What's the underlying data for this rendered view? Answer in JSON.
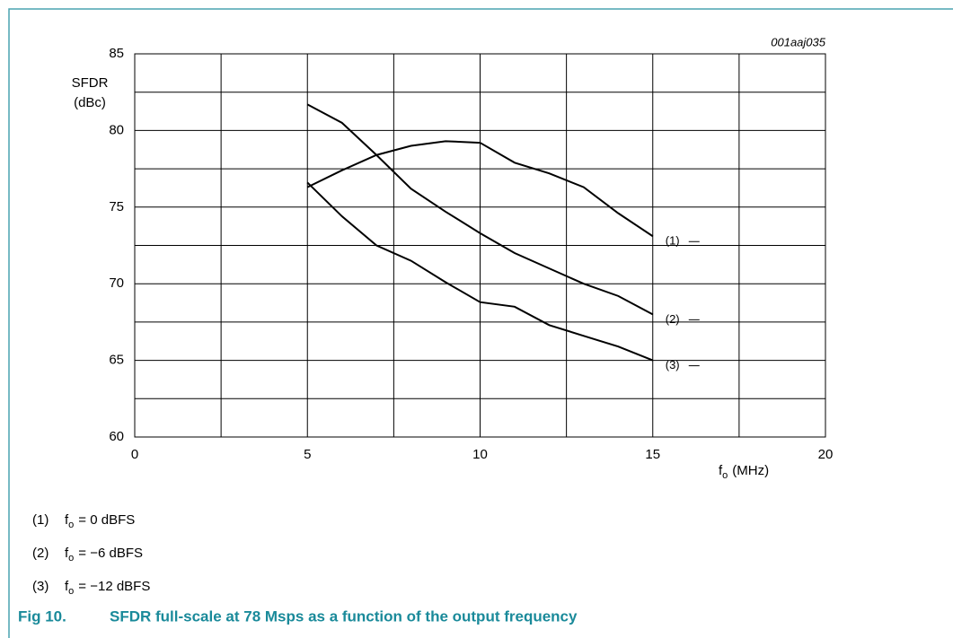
{
  "chart_data": {
    "type": "line",
    "code": "001aaj035",
    "y_label": [
      "SFDR",
      "(dBc)"
    ],
    "x_label": {
      "symbol": "f",
      "sub": "o",
      "unit": "(MHz)"
    },
    "xlim": [
      0,
      20
    ],
    "xticks": [
      0,
      5,
      10,
      15,
      20
    ],
    "xminor": [
      2.5,
      7.5,
      12.5,
      17.5
    ],
    "ylim": [
      60,
      85
    ],
    "yticks": [
      60,
      65,
      70,
      75,
      80,
      85
    ],
    "yminor": [
      62.5,
      67.5,
      72.5,
      77.5,
      82.5
    ],
    "grid": true,
    "x": [
      5,
      6,
      7,
      8,
      9,
      10,
      11,
      12,
      13,
      14,
      15
    ],
    "series": [
      {
        "name": "(1)",
        "color": "#000000",
        "values": [
          76.3,
          77.4,
          78.4,
          79.0,
          79.3,
          79.2,
          77.9,
          77.2,
          76.3,
          74.6,
          73.1
        ]
      },
      {
        "name": "(2)",
        "color": "#000000",
        "values": [
          81.7,
          80.5,
          78.4,
          76.2,
          74.7,
          73.3,
          72.0,
          71.0,
          70.0,
          69.2,
          68.0
        ]
      },
      {
        "name": "(3)",
        "color": "#000000",
        "values": [
          76.6,
          74.4,
          72.5,
          71.5,
          70.1,
          68.8,
          68.5,
          67.3,
          66.6,
          65.9,
          65.0
        ]
      }
    ],
    "notes": [
      {
        "marker": "(1)",
        "symbol": "f",
        "sub": "o",
        "text": "= 0 dBFS"
      },
      {
        "marker": "(2)",
        "symbol": "f",
        "sub": "o",
        "text": "= −6 dBFS"
      },
      {
        "marker": "(3)",
        "symbol": "f",
        "sub": "o",
        "text": "= −12 dBFS"
      }
    ],
    "caption": {
      "number": "Fig 10.",
      "text": "SFDR full-scale at 78 Msps as a function of the output frequency"
    }
  }
}
